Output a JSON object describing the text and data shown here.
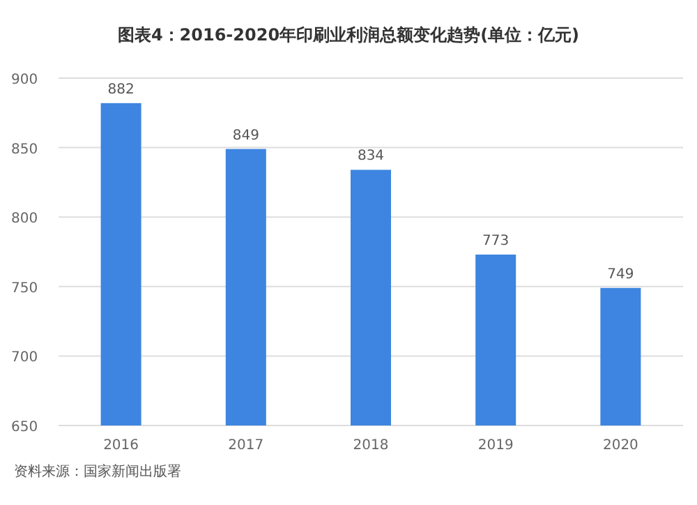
{
  "chart_data": {
    "type": "bar",
    "title": "图表4：2016-2020年印刷业利润总额变化趋势(单位：亿元)",
    "categories": [
      "2016",
      "2017",
      "2018",
      "2019",
      "2020"
    ],
    "values": [
      882,
      849,
      834,
      773,
      749
    ],
    "color": "#3d85e0",
    "ylim": [
      650,
      900
    ],
    "yticks": [
      650,
      700,
      750,
      800,
      850,
      900
    ],
    "grid": "y",
    "data_labels": true,
    "annotations": [
      "资料来源：国家新闻出版署"
    ]
  }
}
